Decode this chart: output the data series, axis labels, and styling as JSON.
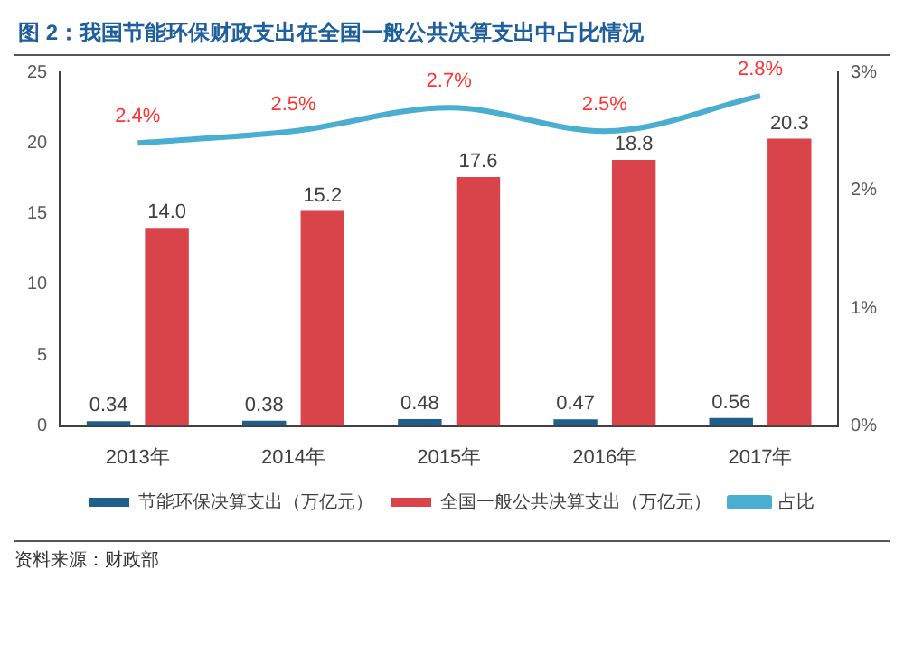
{
  "chart_data": {
    "type": "bar",
    "title": "图 2：我国节能环保财政支出在全国一般公共决算支出中占比情况",
    "categories": [
      "2013年",
      "2014年",
      "2015年",
      "2016年",
      "2017年"
    ],
    "series": [
      {
        "name": "节能环保决算支出（万亿元）",
        "color": "#1f5f8b",
        "values": [
          0.34,
          0.38,
          0.48,
          0.47,
          0.56
        ],
        "value_labels": [
          "0.34",
          "0.38",
          "0.48",
          "0.47",
          "0.56"
        ]
      },
      {
        "name": "全国一般公共决算支出（万亿元）",
        "color": "#d9434a",
        "values": [
          14.0,
          15.2,
          17.6,
          18.8,
          20.3
        ],
        "value_labels": [
          "14.0",
          "15.2",
          "17.6",
          "18.8",
          "20.3"
        ]
      },
      {
        "name": "占比",
        "type": "line",
        "axis": "y2",
        "color": "#4aaed0",
        "values": [
          2.4,
          2.5,
          2.7,
          2.5,
          2.8
        ],
        "value_labels": [
          "2.4%",
          "2.5%",
          "2.7%",
          "2.5%",
          "2.8%"
        ]
      }
    ],
    "ylim": [
      0,
      25
    ],
    "yticks": [
      0,
      5,
      10,
      15,
      20,
      25
    ],
    "y2lim": [
      0,
      3
    ],
    "y2ticks": [
      {
        "value": 0,
        "label": "0%"
      },
      {
        "value": 1,
        "label": "1%"
      },
      {
        "value": 2,
        "label": "2%"
      },
      {
        "value": 3,
        "label": "3%"
      }
    ],
    "grid": false,
    "legend": "bottom",
    "marker": "none",
    "annotations": [
      "资料来源：财政部"
    ]
  }
}
